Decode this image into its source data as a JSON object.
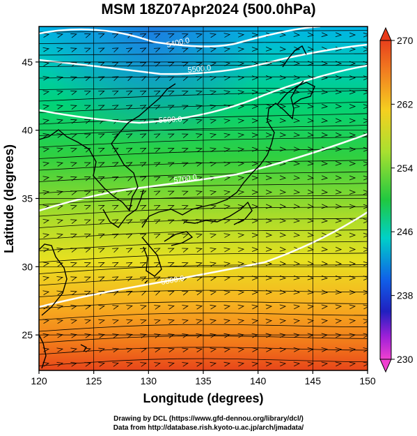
{
  "title": "MSM 18Z07Apr2024 (500.0hPa)",
  "map": {
    "xlabel": "Longitude (degrees)",
    "ylabel": "Latitude  (degrees)",
    "x_ticks": [
      "120",
      "125",
      "130",
      "135",
      "140",
      "145",
      "150"
    ],
    "y_ticks": [
      "25",
      "30",
      "35",
      "40",
      "45"
    ],
    "lon_range": [
      120,
      150
    ],
    "lat_range": [
      22.4,
      47.6
    ],
    "contour_labels": [
      "5400.0",
      "5500.0",
      "5600.0",
      "5700.0",
      "5800.0"
    ]
  },
  "colorbar": {
    "ticks": [
      "270",
      "262",
      "254",
      "246",
      "238",
      "230"
    ],
    "range": [
      230,
      270
    ]
  },
  "credits": {
    "line1": "Drawing by DCL (https://www.gfd-dennou.org/library/dcl/)",
    "line2": "Data from http://database.rish.kyoto-u.ac.jp/arch/jmadata/"
  }
}
